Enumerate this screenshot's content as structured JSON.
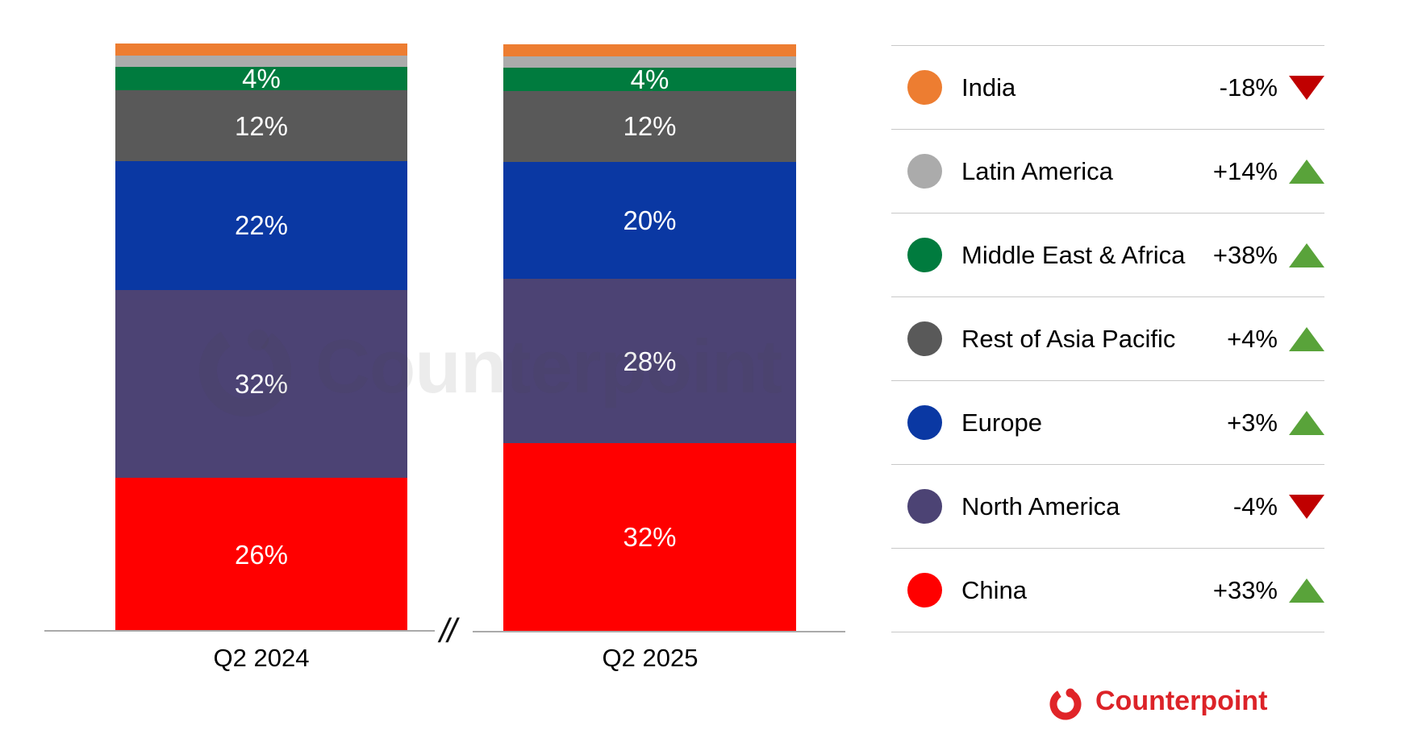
{
  "chart_data": {
    "type": "bar",
    "stacked": true,
    "orientation": "vertical",
    "categories": [
      "Q2 2024",
      "Q2 2025"
    ],
    "series": [
      {
        "name": "India",
        "color": "#ED7D31",
        "values": [
          2,
          2
        ],
        "labels": [
          "",
          ""
        ],
        "yoy_change": "-18%",
        "direction": "down"
      },
      {
        "name": "Latin America",
        "color": "#ABABAB",
        "values": [
          2,
          2
        ],
        "labels": [
          "",
          ""
        ],
        "yoy_change": "+14%",
        "direction": "up"
      },
      {
        "name": "Middle East & Africa",
        "color": "#007B3E",
        "values": [
          4,
          4
        ],
        "labels": [
          "4%",
          "4%"
        ],
        "yoy_change": "+38%",
        "direction": "up"
      },
      {
        "name": "Rest of Asia Pacific",
        "color": "#595959",
        "values": [
          12,
          12
        ],
        "labels": [
          "12%",
          "12%"
        ],
        "yoy_change": "+4%",
        "direction": "up"
      },
      {
        "name": "Europe",
        "color": "#0A38A3",
        "values": [
          22,
          20
        ],
        "labels": [
          "22%",
          "20%"
        ],
        "yoy_change": "+3%",
        "direction": "up"
      },
      {
        "name": "North America",
        "color": "#4C4374",
        "values": [
          32,
          28
        ],
        "labels": [
          "32%",
          "28%"
        ],
        "yoy_change": "-4%",
        "direction": "down"
      },
      {
        "name": "China",
        "color": "#FF0000",
        "values": [
          26,
          32
        ],
        "labels": [
          "26%",
          "32%"
        ],
        "yoy_change": "+33%",
        "direction": "up"
      }
    ],
    "ylim": [
      0,
      100
    ],
    "grid": false,
    "legend_position": "right",
    "legend_colors": {
      "up": "#59A33A",
      "down": "#C00000"
    }
  },
  "axis": {
    "break_symbol": "//",
    "x_labels": [
      "Q2 2024",
      "Q2 2025"
    ]
  },
  "watermark": {
    "text": "Counterpoint"
  },
  "brand": {
    "logo_text": "Counterpoint"
  }
}
